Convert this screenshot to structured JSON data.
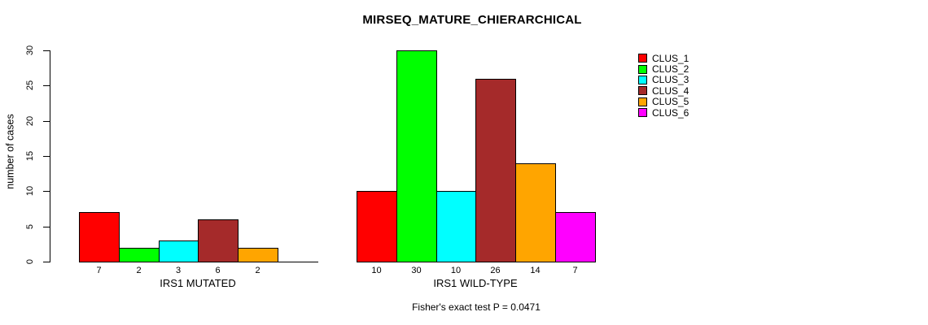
{
  "chart_data": {
    "type": "bar",
    "title": "MIRSEQ_MATURE_CHIERARCHICAL",
    "ylabel": "number of cases",
    "ylim": [
      0,
      30
    ],
    "yticks": [
      0,
      5,
      10,
      15,
      20,
      25,
      30
    ],
    "grid": false,
    "categories": [
      "CLUS_1",
      "CLUS_2",
      "CLUS_3",
      "CLUS_4",
      "CLUS_5",
      "CLUS_6"
    ],
    "colors": [
      "#FF0000",
      "#00FF00",
      "#00FFFF",
      "#A52A2A",
      "#FFA500",
      "#FF00FF"
    ],
    "groups": [
      {
        "label": "IRS1 MUTATED",
        "values": [
          7,
          2,
          3,
          6,
          2,
          0
        ],
        "value_labels": [
          "7",
          "2",
          "3",
          "6",
          "2",
          ""
        ]
      },
      {
        "label": "IRS1 WILD-TYPE",
        "values": [
          10,
          30,
          10,
          26,
          14,
          7
        ],
        "value_labels": [
          "10",
          "30",
          "10",
          "26",
          "14",
          "7"
        ]
      }
    ],
    "legend": {
      "position": "right",
      "entries": [
        {
          "label": "CLUS_1",
          "color": "#FF0000"
        },
        {
          "label": "CLUS_2",
          "color": "#00FF00"
        },
        {
          "label": "CLUS_3",
          "color": "#00FFFF"
        },
        {
          "label": "CLUS_4",
          "color": "#A52A2A"
        },
        {
          "label": "CLUS_5",
          "color": "#FFA500"
        },
        {
          "label": "CLUS_6",
          "color": "#FF00FF"
        }
      ]
    },
    "footnote": "Fisher's exact test P = 0.0471"
  }
}
